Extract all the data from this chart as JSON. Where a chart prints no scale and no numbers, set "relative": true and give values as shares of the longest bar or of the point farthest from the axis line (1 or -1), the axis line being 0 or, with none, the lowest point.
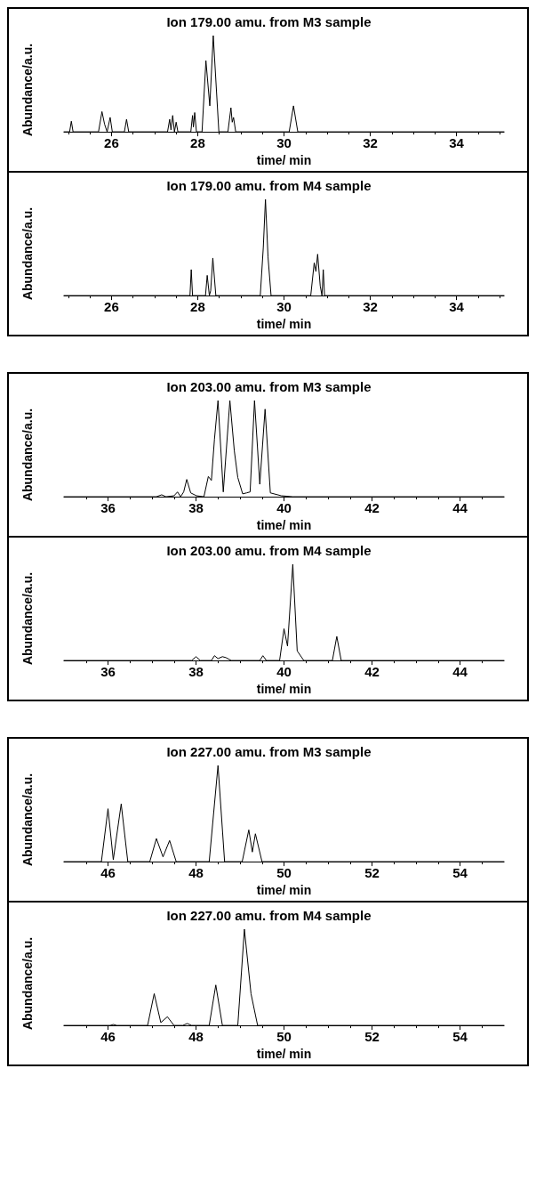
{
  "chart_data": [
    {
      "type": "line",
      "title": "Ion 179.00 amu. from M3 sample",
      "xlabel": "time/ min",
      "ylabel": "Abundance/a.u.",
      "relative": true,
      "grid": false,
      "xlim": [
        24.9,
        35.1
      ],
      "xticks": [
        26,
        28,
        30,
        32,
        34
      ],
      "color": "#000000",
      "x": [
        24.9,
        25.03,
        25.07,
        25.11,
        25.7,
        25.78,
        25.84,
        25.9,
        25.97,
        26.02,
        26.3,
        26.35,
        26.4,
        27.3,
        27.35,
        27.38,
        27.42,
        27.46,
        27.5,
        27.54,
        27.84,
        27.88,
        27.9,
        27.93,
        27.97,
        28.1,
        28.19,
        28.28,
        28.36,
        28.49,
        28.7,
        28.77,
        28.8,
        28.83,
        28.88,
        30.12,
        30.22,
        30.32,
        35.1
      ],
      "values": [
        0,
        0,
        0.11,
        0,
        0,
        0.21,
        0.08,
        0,
        0.15,
        0,
        0,
        0.13,
        0,
        0,
        0.13,
        0.02,
        0.17,
        0,
        0.1,
        0,
        0,
        0.17,
        0.05,
        0.2,
        0,
        0,
        0.74,
        0.27,
        1,
        0,
        0,
        0.25,
        0.1,
        0.15,
        0,
        0,
        0.27,
        0,
        0
      ]
    },
    {
      "type": "line",
      "title": "Ion 179.00 amu. from M4 sample",
      "xlabel": "time/ min",
      "ylabel": "Abundance/a.u.",
      "relative": true,
      "grid": false,
      "xlim": [
        24.9,
        35.1
      ],
      "xticks": [
        26,
        28,
        30,
        32,
        34
      ],
      "color": "#000000",
      "x": [
        24.9,
        27.82,
        27.85,
        27.88,
        28.18,
        28.22,
        28.27,
        28.3,
        28.35,
        28.42,
        29.45,
        29.52,
        29.57,
        29.63,
        29.7,
        30.62,
        30.7,
        30.74,
        30.78,
        30.84,
        30.88,
        30.91,
        30.94,
        35.1
      ],
      "values": [
        0,
        0,
        0.27,
        0,
        0,
        0.21,
        0,
        0.05,
        0.39,
        0,
        0,
        0.5,
        1,
        0.4,
        0,
        0,
        0.34,
        0.25,
        0.43,
        0.1,
        0,
        0.27,
        0,
        0
      ]
    },
    {
      "type": "line",
      "title": "Ion 203.00 amu. from M3 sample",
      "xlabel": "time/ min",
      "ylabel": "Abundance/a.u.",
      "relative": true,
      "grid": false,
      "xlim": [
        35,
        45
      ],
      "xticks": [
        36,
        38,
        40,
        42,
        44
      ],
      "color": "#000000",
      "x": [
        35,
        37.1,
        37.22,
        37.32,
        37.5,
        37.58,
        37.65,
        37.72,
        37.79,
        37.88,
        38.01,
        38.18,
        38.28,
        38.35,
        38.42,
        38.5,
        38.62,
        38.77,
        38.87,
        38.95,
        39.06,
        39.15,
        39.23,
        39.33,
        39.45,
        39.57,
        39.69,
        39.94,
        40.2,
        45
      ],
      "values": [
        0,
        0,
        0.02,
        0,
        0.01,
        0.05,
        0,
        0.05,
        0.18,
        0.04,
        0.01,
        0,
        0.21,
        0.17,
        0.6,
        1,
        0.05,
        1,
        0.48,
        0.2,
        0.03,
        0.04,
        0.05,
        1,
        0.13,
        0.91,
        0.04,
        0.01,
        0,
        0
      ]
    },
    {
      "type": "line",
      "title": "Ion 203.00 amu. from M4 sample",
      "xlabel": "time/ min",
      "ylabel": "Abundance/a.u.",
      "relative": true,
      "grid": false,
      "xlim": [
        35,
        45
      ],
      "xticks": [
        36,
        38,
        40,
        42,
        44
      ],
      "color": "#000000",
      "x": [
        35,
        37.9,
        38.0,
        38.1,
        38.35,
        38.42,
        38.5,
        38.6,
        38.68,
        38.8,
        39.45,
        39.52,
        39.6,
        39.9,
        40.0,
        40.08,
        40.2,
        40.3,
        40.45,
        41.1,
        41.2,
        41.3,
        45
      ],
      "values": [
        0,
        0,
        0.04,
        0,
        0,
        0.05,
        0.02,
        0.04,
        0.03,
        0,
        0,
        0.05,
        0,
        0,
        0.33,
        0.15,
        1,
        0.1,
        0,
        0,
        0.25,
        0,
        0
      ]
    },
    {
      "type": "line",
      "title": "Ion 227.00 amu. from M3 sample",
      "xlabel": "time/ min",
      "ylabel": "Abundance/a.u.",
      "relative": true,
      "grid": false,
      "xlim": [
        45,
        55
      ],
      "xticks": [
        46,
        48,
        50,
        52,
        54
      ],
      "color": "#000000",
      "x": [
        45,
        45.85,
        46.0,
        46.12,
        46.3,
        46.45,
        46.95,
        47.1,
        47.25,
        47.4,
        47.55,
        48.3,
        48.5,
        48.65,
        49.05,
        49.2,
        49.28,
        49.35,
        49.5,
        55
      ],
      "values": [
        0,
        0,
        0.55,
        0.02,
        0.6,
        0,
        0,
        0.24,
        0.05,
        0.22,
        0,
        0,
        1,
        0,
        0,
        0.33,
        0.1,
        0.29,
        0,
        0
      ]
    },
    {
      "type": "line",
      "title": "Ion 227.00 amu. from M4 sample",
      "xlabel": "time/ min",
      "ylabel": "Abundance/a.u.",
      "relative": true,
      "grid": false,
      "xlim": [
        45,
        55
      ],
      "xticks": [
        46,
        48,
        50,
        52,
        54
      ],
      "color": "#000000",
      "x": [
        45,
        46.05,
        46.12,
        46.2,
        46.9,
        47.05,
        47.2,
        47.35,
        47.5,
        47.7,
        47.8,
        47.9,
        48.3,
        48.45,
        48.6,
        48.95,
        49.1,
        49.25,
        49.4,
        55
      ],
      "values": [
        0,
        0,
        0.01,
        0,
        0,
        0.33,
        0.03,
        0.09,
        0,
        0,
        0.02,
        0,
        0,
        0.42,
        0,
        0,
        1,
        0.33,
        0,
        0
      ]
    }
  ]
}
